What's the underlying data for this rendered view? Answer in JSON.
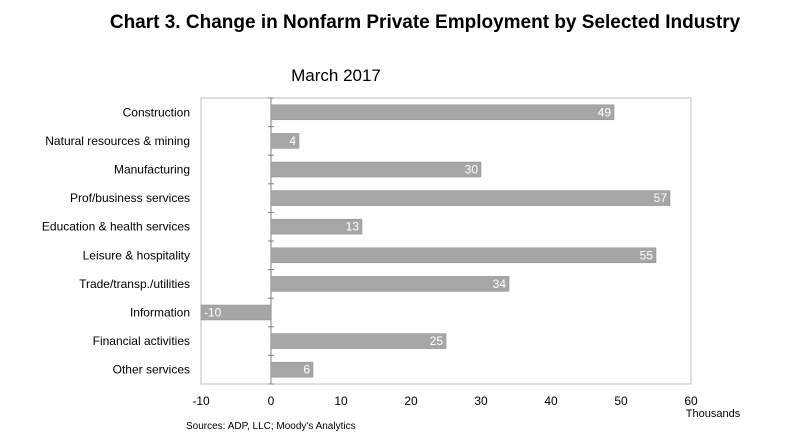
{
  "chart_data": {
    "type": "bar",
    "orientation": "horizontal",
    "title": "Chart 3. Change in Nonfarm Private Employment by Selected Industry",
    "subtitle": "March 2017",
    "categories": [
      "Construction",
      "Natural resources & mining",
      "Manufacturing",
      "Prof/business services",
      "Education & health services",
      "Leisure & hospitality",
      "Trade/transp./utilities",
      "Information",
      "Financial activities",
      "Other services"
    ],
    "values": [
      49,
      4,
      30,
      57,
      13,
      55,
      34,
      -10,
      25,
      6
    ],
    "data_labels": [
      "49",
      "4",
      "30",
      "57",
      "13",
      "55",
      "34",
      "-10",
      "25",
      "6"
    ],
    "xlim": [
      -10,
      60
    ],
    "xticks": [
      -10,
      0,
      10,
      20,
      30,
      40,
      50,
      60
    ],
    "xtick_labels": [
      "-10",
      "0",
      "10",
      "20",
      "30",
      "40",
      "50",
      "60"
    ],
    "xunits": "Thousands",
    "grid": false,
    "legend": "none",
    "bar_color": "#a6a6a6",
    "source": "Sources: ADP, LLC; Moody's Analytics"
  }
}
